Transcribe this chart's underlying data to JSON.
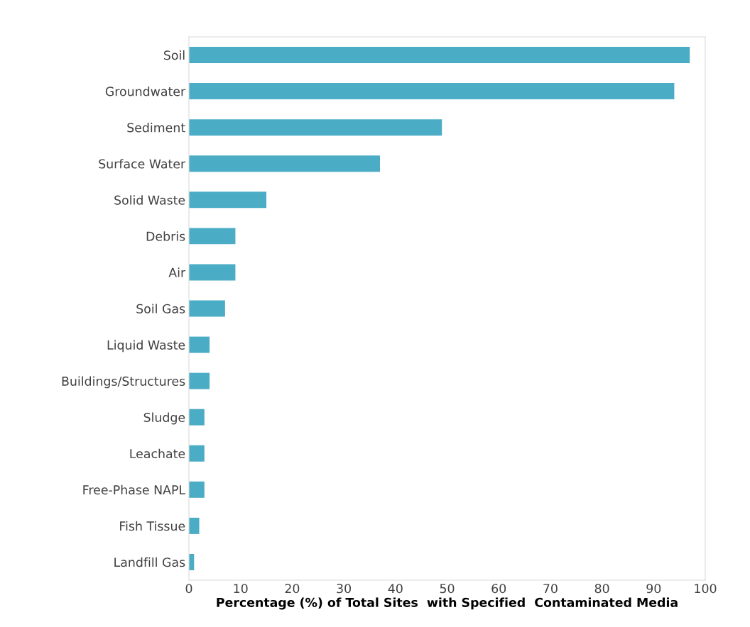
{
  "chart_data": {
    "type": "bar",
    "orientation": "horizontal",
    "xlabel": "Percentage (%) of Total Sites  with Specified  Contaminated Media",
    "categories": [
      "Soil",
      "Groundwater",
      "Sediment",
      "Surface Water",
      "Solid Waste",
      "Debris",
      "Air",
      "Soil Gas",
      "Liquid Waste",
      "Buildings/Structures",
      "Sludge",
      "Leachate",
      "Free-Phase NAPL",
      "Fish Tissue",
      "Landfill Gas"
    ],
    "values": [
      97,
      94,
      49,
      37,
      15,
      9,
      9,
      7,
      4,
      4,
      3,
      3,
      3,
      2,
      1
    ],
    "color": "#4bacc6",
    "xlim": [
      0,
      100
    ],
    "xticks": [
      0,
      10,
      20,
      30,
      40,
      50,
      60,
      70,
      80,
      90,
      100
    ],
    "grid": false,
    "legend": false
  }
}
